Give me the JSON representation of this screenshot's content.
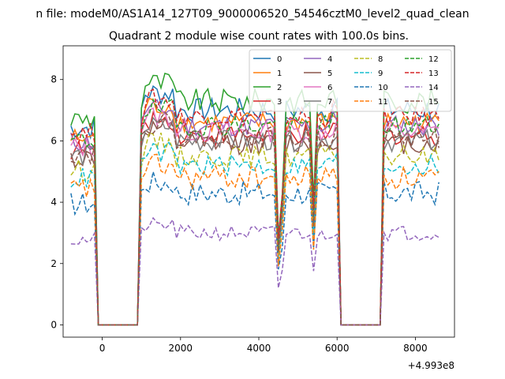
{
  "chart_data": {
    "type": "line",
    "suptitle": "n file: modeM0/AS1A14_127T09_9000006520_54546cztM0_level2_quad_clean",
    "title": "Quadrant 2 module wise count rates with 100.0s bins.",
    "x_offset_label": "+4.993e8",
    "xlabel": "",
    "ylabel": "",
    "xlim": [
      -1000,
      9000
    ],
    "ylim": [
      -0.4,
      9.1
    ],
    "xticks": [
      0,
      2000,
      4000,
      6000,
      8000
    ],
    "xtick_labels": [
      "0",
      "2000",
      "4000",
      "6000",
      "8000"
    ],
    "yticks": [
      0,
      2,
      4,
      6,
      8
    ],
    "ytick_labels": [
      "0",
      "2",
      "4",
      "6",
      "8"
    ],
    "grid": false,
    "legend_position": "top-right",
    "legend_columns": 4,
    "x_note": "x values are seconds relative to 4.993e8; bins of 100 s from -800 to 8600",
    "gaps": [
      [
        -100,
        900
      ],
      [
        6100,
        7100
      ]
    ],
    "dips": [
      [
        4500,
        0.4
      ],
      [
        4600,
        0.6
      ],
      [
        5400,
        0.55
      ]
    ],
    "series": [
      {
        "name": "0",
        "color": "#1f77b4",
        "dash": "solid",
        "level": 7.0,
        "noise": 0.4
      },
      {
        "name": "1",
        "color": "#ff7f0e",
        "dash": "solid",
        "level": 6.6,
        "noise": 0.35
      },
      {
        "name": "2",
        "color": "#2ca02c",
        "dash": "solid",
        "level": 7.3,
        "noise": 0.4
      },
      {
        "name": "3",
        "color": "#d62728",
        "dash": "solid",
        "level": 6.2,
        "noise": 0.35
      },
      {
        "name": "4",
        "color": "#9467bd",
        "dash": "solid",
        "level": 6.5,
        "noise": 0.35
      },
      {
        "name": "5",
        "color": "#8c564b",
        "dash": "solid",
        "level": 5.9,
        "noise": 0.35
      },
      {
        "name": "6",
        "color": "#e377c2",
        "dash": "solid",
        "level": 6.3,
        "noise": 0.35
      },
      {
        "name": "7",
        "color": "#7f7f7f",
        "dash": "solid",
        "level": 6.0,
        "noise": 0.35
      },
      {
        "name": "8",
        "color": "#bcbd22",
        "dash": "dashed",
        "level": 5.5,
        "noise": 0.35
      },
      {
        "name": "9",
        "color": "#17becf",
        "dash": "dashed",
        "level": 5.2,
        "noise": 0.35
      },
      {
        "name": "10",
        "color": "#1f77b4",
        "dash": "dashed",
        "level": 4.3,
        "noise": 0.4
      },
      {
        "name": "11",
        "color": "#ff7f0e",
        "dash": "dashed",
        "level": 4.8,
        "noise": 0.4
      },
      {
        "name": "12",
        "color": "#2ca02c",
        "dash": "dashed",
        "level": 6.5,
        "noise": 0.35
      },
      {
        "name": "13",
        "color": "#d62728",
        "dash": "dashed",
        "level": 6.8,
        "noise": 0.35
      },
      {
        "name": "14",
        "color": "#9467bd",
        "dash": "dashed",
        "level": 3.0,
        "noise": 0.25
      },
      {
        "name": "15",
        "color": "#8c564b",
        "dash": "dashed",
        "level": 6.1,
        "noise": 0.35
      }
    ]
  }
}
